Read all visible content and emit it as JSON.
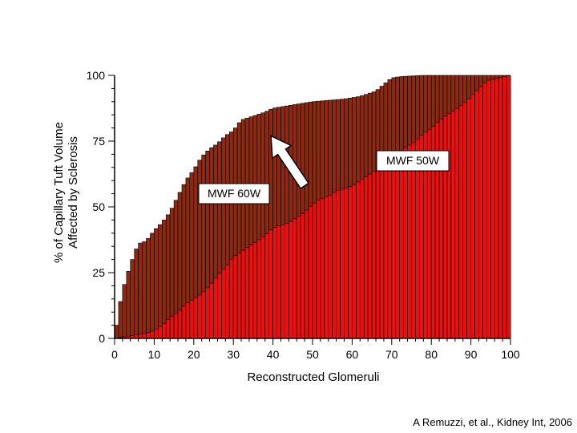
{
  "chart_data": {
    "type": "bar",
    "title": "",
    "xlabel": "Reconstructed Glomeruli",
    "ylabel_lines": [
      "% of Capillary Tuft Volume",
      "Affected by Sclerosis"
    ],
    "xlim": [
      0,
      100
    ],
    "ylim": [
      0,
      100
    ],
    "x_ticks": [
      0,
      10,
      20,
      30,
      40,
      50,
      60,
      70,
      80,
      90,
      100
    ],
    "y_ticks": [
      0,
      25,
      50,
      75,
      100
    ],
    "grid": false,
    "n_bars": 100,
    "series": [
      {
        "name": "MWF 60W",
        "color": "#8B2A12",
        "knots_x": [
          0,
          1,
          2,
          4,
          6,
          8,
          10,
          12,
          14,
          16,
          18,
          20,
          22,
          24,
          26,
          28,
          30,
          32,
          34,
          36,
          38,
          40,
          42,
          46,
          50,
          54,
          58,
          62,
          66,
          70,
          72,
          74,
          78,
          82,
          86,
          90,
          100
        ],
        "knots_y": [
          0,
          10,
          18,
          28,
          36,
          37,
          41,
          44,
          48,
          54,
          60,
          64,
          69,
          72,
          74,
          77,
          79,
          83,
          84,
          85,
          86,
          87.5,
          88,
          89,
          90,
          90.5,
          91,
          92,
          94,
          99,
          99.5,
          99.7,
          100,
          100,
          100,
          100,
          100
        ]
      },
      {
        "name": "MWF 50W",
        "color": "#E81010",
        "knots_x": [
          0,
          2,
          4,
          6,
          8,
          10,
          12,
          14,
          16,
          18,
          20,
          22,
          24,
          26,
          28,
          30,
          32,
          34,
          36,
          38,
          40,
          42,
          44,
          46,
          48,
          50,
          52,
          54,
          56,
          58,
          60,
          62,
          64,
          66,
          68,
          70,
          72,
          74,
          76,
          78,
          80,
          82,
          84,
          86,
          88,
          90,
          92,
          94,
          100
        ],
        "knots_y": [
          0,
          0.5,
          1,
          1.5,
          2,
          3,
          5,
          8,
          10,
          13,
          15,
          17,
          20,
          24,
          27,
          31,
          33,
          35,
          37,
          39,
          42,
          43,
          44,
          46,
          48,
          51,
          53,
          54,
          56,
          57,
          58,
          60,
          62,
          64,
          66,
          68,
          71,
          73,
          75,
          78,
          80,
          83,
          85,
          87,
          89,
          92,
          95,
          98,
          100
        ]
      }
    ],
    "annotations": [
      "MWF 60W",
      "MWF 50W"
    ],
    "arrow": {
      "from": [
        48,
        58
      ],
      "to": [
        39.5,
        77
      ]
    },
    "colors": {
      "bar_outline": "#000000",
      "arrow_fill": "#ffffff",
      "label_box": "#ffffff"
    }
  },
  "citation": "A Remuzzi, et al., Kidney Int, 2006"
}
